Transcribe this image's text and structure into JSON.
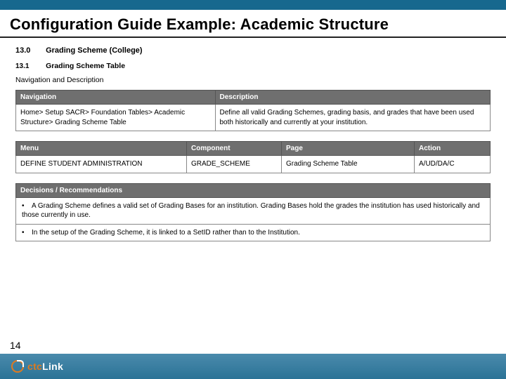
{
  "title": "Configuration Guide Example: Academic Structure",
  "section": {
    "num": "13.0",
    "text": "Grading Scheme (College)"
  },
  "subsection": {
    "num": "13.1",
    "text": "Grading Scheme Table"
  },
  "navdesc_label": "Navigation and Description",
  "table1": {
    "headers": [
      "Navigation",
      "Description"
    ],
    "row": [
      "Home> Setup SACR> Foundation Tables> Academic Structure> Grading Scheme Table",
      "Define all valid Grading Schemes, grading basis, and grades that have been used both historically and currently at your institution."
    ]
  },
  "table2": {
    "headers": [
      "Menu",
      "Component",
      "Page",
      "Action"
    ],
    "row": [
      "DEFINE STUDENT ADMINISTRATION",
      "GRADE_SCHEME",
      "Grading Scheme Table",
      "A/UD/DA/C"
    ]
  },
  "table3": {
    "header": "Decisions / Recommendations",
    "bullets": [
      "A Grading Scheme defines a valid set of Grading Bases for an institution. Grading Bases hold the grades the institution has used historically and those currently in use.",
      "In the setup of the Grading Scheme, it is linked to a SetID rather than to the Institution."
    ]
  },
  "page_number": "14",
  "logo": {
    "pre": "ctc",
    "post": "Link"
  },
  "colors": {
    "topbar": "#17688e",
    "footer_grad_top": "#4a8aac",
    "footer_grad_bot": "#2b7396",
    "th_bg": "#6f6f6f",
    "accent": "#e07a1f"
  }
}
